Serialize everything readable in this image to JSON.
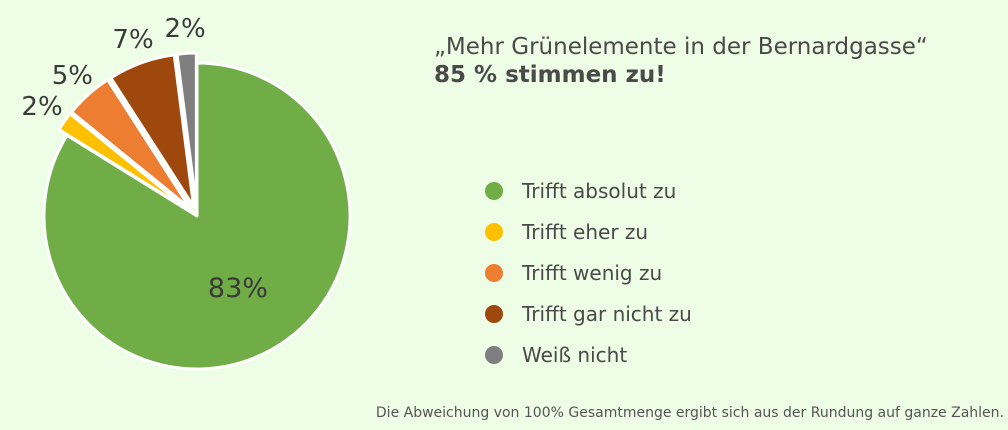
{
  "chart_data": {
    "type": "pie",
    "title": "„Mehr Grünelemente in der Bernardgasse“",
    "subtitle": "85 % stimmen zu!",
    "categories": [
      "Trifft absolut zu",
      "Trifft eher zu",
      "Trifft wenig zu",
      "Trifft gar nicht zu",
      "Weiß nicht"
    ],
    "values": [
      83,
      2,
      5,
      7,
      2
    ],
    "labels": [
      "83%",
      "2%",
      "5%",
      "7%",
      "2%"
    ],
    "colors": [
      "#70ad47",
      "#ffc000",
      "#ed7d31",
      "#9e480e",
      "#7f7f7f"
    ],
    "start": "12 o'clock",
    "direction": "clockwise",
    "legend_position": "right"
  },
  "footnote": "Die Abweichung von 100% Gesamtmenge ergibt sich aus der Rundung auf ganze Zahlen."
}
